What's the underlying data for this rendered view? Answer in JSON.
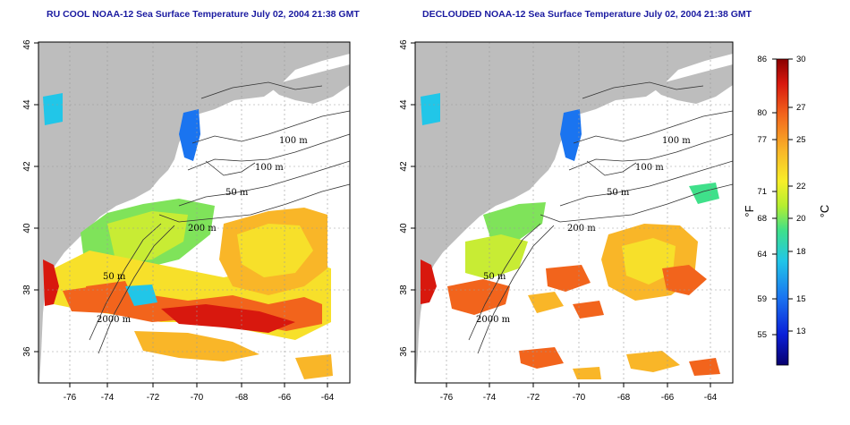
{
  "titles": {
    "left": "RU COOL NOAA-12 Sea Surface Temperature July 02, 2004 21:38 GMT",
    "right": "DECLOUDED NOAA-12 Sea Surface Temperature July 02, 2004 21:38 GMT"
  },
  "axes": {
    "lon_ticks": [
      "-76",
      "-74",
      "-72",
      "-70",
      "-68",
      "-66",
      "-64"
    ],
    "lat_ticks": [
      "36",
      "38",
      "40",
      "42",
      "44",
      "46"
    ]
  },
  "contour_labels": [
    "100 m",
    "100 m",
    "50 m",
    "200 m",
    "50 m",
    "2000 m"
  ],
  "colorbar": {
    "fahrenheit_ticks": [
      "86",
      "80",
      "77",
      "71",
      "68",
      "64",
      "59",
      "55"
    ],
    "celsius_ticks": [
      "30",
      "27",
      "25",
      "22",
      "20",
      "18",
      "15",
      "13"
    ],
    "unit_f": "°F",
    "unit_c": "°C",
    "colors": [
      "#08006e",
      "#0a1fd8",
      "#1a74f0",
      "#21c6e8",
      "#3fe08a",
      "#b4ee30",
      "#f7ee28",
      "#f9b628",
      "#f2641c",
      "#d8180e",
      "#8a0000"
    ]
  },
  "colors": {
    "land": "#bdbdbd",
    "water": "#ffffff",
    "title": "#1a1aa0",
    "grid": "#9a9a9a"
  }
}
